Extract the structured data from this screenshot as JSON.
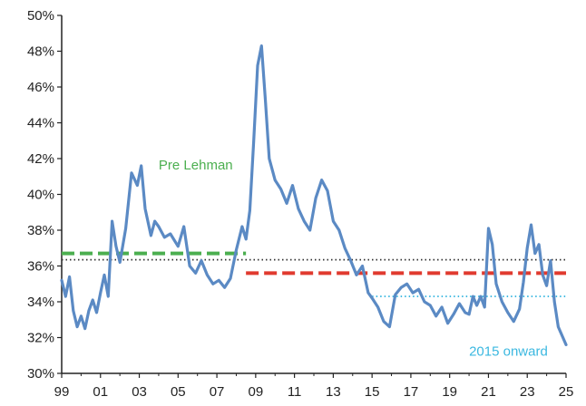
{
  "chart_data": {
    "type": "line",
    "title": "",
    "xlabel": "",
    "ylabel": "",
    "x_tick_labels": [
      "99",
      "01",
      "03",
      "05",
      "07",
      "09",
      "11",
      "13",
      "15",
      "17",
      "19",
      "21",
      "23",
      "25"
    ],
    "x_tick_years": [
      1999,
      2001,
      2003,
      2005,
      2007,
      2009,
      2011,
      2013,
      2015,
      2017,
      2019,
      2021,
      2023,
      2025
    ],
    "xlim": [
      1999,
      2025
    ],
    "y_tick_labels": [
      "30%",
      "32%",
      "34%",
      "36%",
      "38%",
      "40%",
      "42%",
      "44%",
      "46%",
      "48%",
      "50%"
    ],
    "y_tick_values": [
      30,
      32,
      34,
      36,
      38,
      40,
      42,
      44,
      46,
      48,
      50
    ],
    "ylim": [
      30,
      50
    ],
    "grid": false,
    "series": [
      {
        "color": "#5b8ac4",
        "x": [
          1999.0,
          1999.2,
          1999.4,
          1999.6,
          1999.8,
          2000.0,
          2000.2,
          2000.4,
          2000.6,
          2000.8,
          2001.0,
          2001.2,
          2001.4,
          2001.6,
          2001.8,
          2002.0,
          2002.3,
          2002.6,
          2002.9,
          2003.1,
          2003.3,
          2003.6,
          2003.8,
          2004.0,
          2004.3,
          2004.6,
          2005.0,
          2005.3,
          2005.6,
          2005.9,
          2006.2,
          2006.5,
          2006.8,
          2007.1,
          2007.4,
          2007.7,
          2008.0,
          2008.3,
          2008.5,
          2008.7,
          2008.9,
          2009.1,
          2009.3,
          2009.5,
          2009.7,
          2010.0,
          2010.3,
          2010.6,
          2010.9,
          2011.2,
          2011.5,
          2011.8,
          2012.1,
          2012.4,
          2012.7,
          2013.0,
          2013.3,
          2013.6,
          2013.9,
          2014.2,
          2014.5,
          2014.8,
          2015.0,
          2015.3,
          2015.6,
          2015.9,
          2016.2,
          2016.5,
          2016.8,
          2017.1,
          2017.4,
          2017.7,
          2018.0,
          2018.3,
          2018.6,
          2018.9,
          2019.2,
          2019.5,
          2019.8,
          2020.0,
          2020.2,
          2020.4,
          2020.6,
          2020.8,
          2021.0,
          2021.2,
          2021.4,
          2021.7,
          2022.0,
          2022.3,
          2022.6,
          2022.8,
          2023.0,
          2023.2,
          2023.4,
          2023.6,
          2023.8,
          2024.0,
          2024.2,
          2024.4,
          2024.6,
          2024.8,
          2025.0
        ],
        "values": [
          35.2,
          34.3,
          35.4,
          33.5,
          32.6,
          33.2,
          32.5,
          33.5,
          34.1,
          33.4,
          34.5,
          35.5,
          34.3,
          38.5,
          37.1,
          36.2,
          38.1,
          41.2,
          40.5,
          41.6,
          39.2,
          37.7,
          38.5,
          38.2,
          37.6,
          37.8,
          37.1,
          38.2,
          36.0,
          35.6,
          36.3,
          35.5,
          35.0,
          35.2,
          34.8,
          35.3,
          36.9,
          38.2,
          37.5,
          39.1,
          43.0,
          47.2,
          48.3,
          45.3,
          42.0,
          40.8,
          40.3,
          39.5,
          40.5,
          39.2,
          38.5,
          38.0,
          39.8,
          40.8,
          40.2,
          38.5,
          38.0,
          37.0,
          36.3,
          35.5,
          36.0,
          34.5,
          34.2,
          33.7,
          32.9,
          32.6,
          34.4,
          34.8,
          35.0,
          34.5,
          34.7,
          34.0,
          33.8,
          33.2,
          33.7,
          32.8,
          33.3,
          33.9,
          33.4,
          33.3,
          34.3,
          33.8,
          34.3,
          33.7,
          38.1,
          37.2,
          35.0,
          34.0,
          33.4,
          32.9,
          33.6,
          35.1,
          37.0,
          38.3,
          36.7,
          37.2,
          35.5,
          34.9,
          36.3,
          34.0,
          32.6,
          32.1,
          31.6
        ]
      }
    ],
    "reference_lines": [
      {
        "name": "Pre Lehman",
        "style": "dashed",
        "color": "#4caf50",
        "y": 36.7,
        "x_from": 1999,
        "x_to": 2008.5
      },
      {
        "name": "",
        "style": "dashed",
        "color": "#e03a2f",
        "y": 35.6,
        "x_from": 2008.5,
        "x_to": 2025
      },
      {
        "name": "",
        "style": "dotted",
        "color": "#333333",
        "y": 36.35,
        "x_from": 1999,
        "x_to": 2025
      },
      {
        "name": "2015 onward",
        "style": "dotted",
        "color": "#3bb8e0",
        "y": 34.3,
        "x_from": 2015,
        "x_to": 2025
      }
    ],
    "annotations": [
      {
        "text": "Pre Lehman",
        "color": "#4caf50",
        "x": 2004.0,
        "y": 41.4
      },
      {
        "text": "2015 onward",
        "color": "#3bb8e0",
        "x": 2020.0,
        "y": 31.0
      }
    ]
  }
}
